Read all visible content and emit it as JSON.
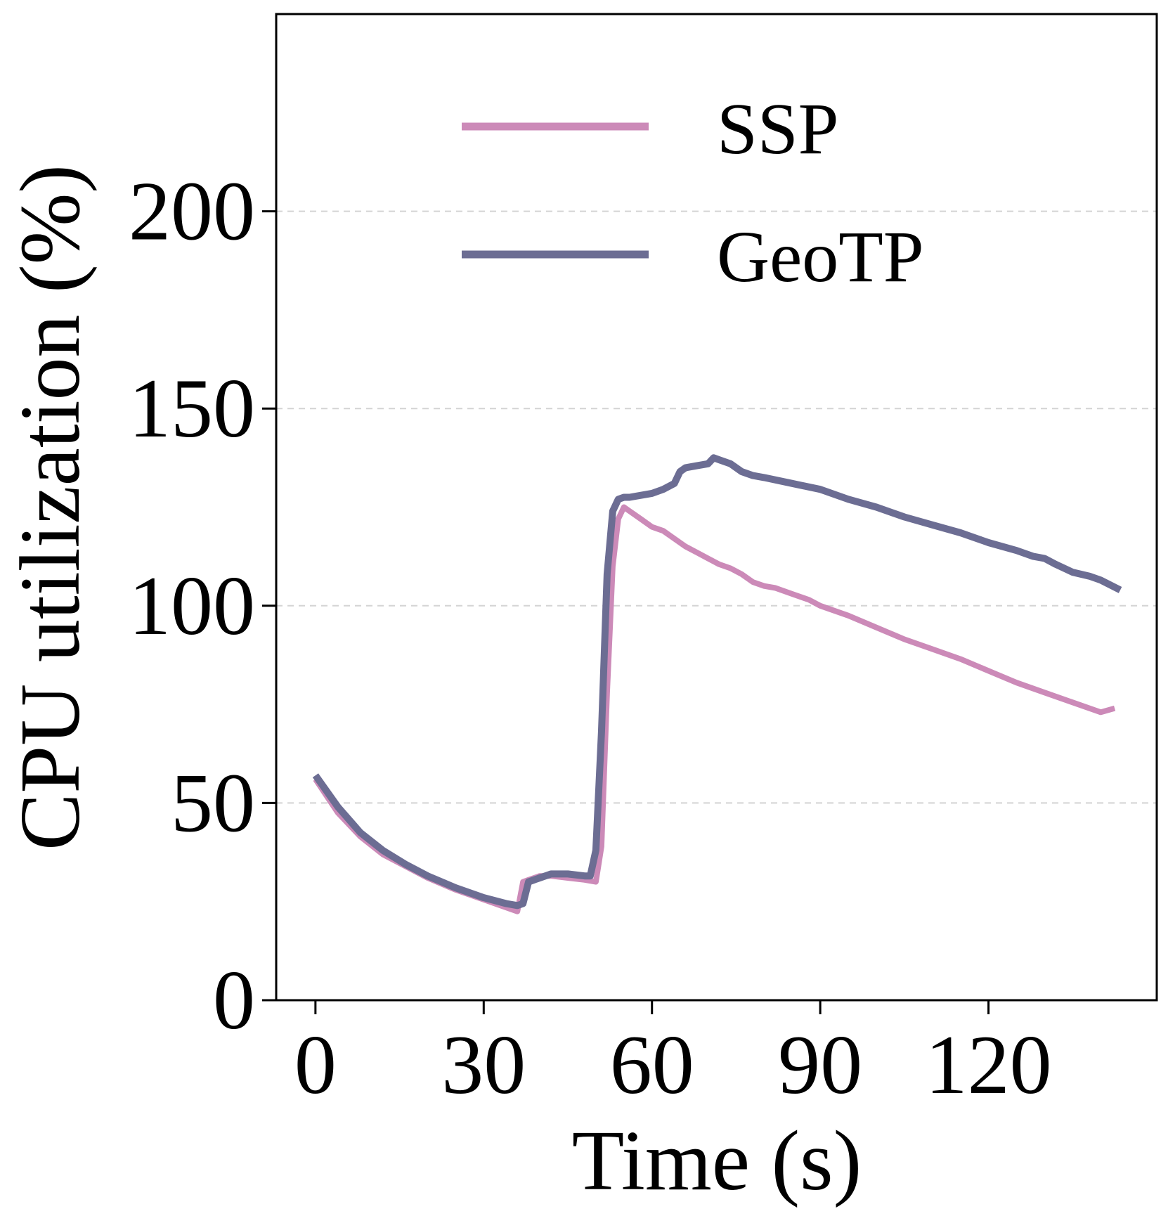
{
  "chart_data": {
    "type": "line",
    "title": "",
    "xlabel": "Time (s)",
    "ylabel": "CPU utilization (%)",
    "xlim": [
      -7,
      150
    ],
    "ylim": [
      0,
      250
    ],
    "xticks": [
      0,
      30,
      60,
      90,
      120
    ],
    "xtick_labels": [
      "0",
      "30",
      "60",
      "90",
      "120"
    ],
    "yticks": [
      0,
      50,
      100,
      150,
      200
    ],
    "ytick_labels": [
      "0",
      "50",
      "100",
      "150",
      "200"
    ],
    "grid": "horizontal dashed",
    "legend_position": "top-center",
    "series": [
      {
        "name": "SSP",
        "color": "#cc8ab8",
        "x": [
          0,
          4,
          8,
          12,
          16,
          20,
          25,
          30,
          34,
          36,
          37,
          38,
          40,
          42,
          45,
          48,
          50,
          51,
          52,
          53,
          54,
          55,
          56,
          58,
          60,
          62,
          64,
          66,
          68,
          70,
          72,
          74,
          76,
          78,
          80,
          82,
          85,
          88,
          90,
          95,
          100,
          105,
          110,
          115,
          120,
          125,
          130,
          135,
          140,
          142.5
        ],
        "y": [
          56,
          47.5,
          41.5,
          37,
          34,
          31,
          28,
          25.5,
          23.5,
          22.5,
          30,
          30.5,
          31.5,
          31.5,
          31,
          30.5,
          30,
          39,
          78,
          110,
          122,
          125,
          124,
          122,
          120,
          119,
          117,
          115,
          113.5,
          112,
          110.5,
          109.5,
          108,
          106,
          105,
          104.5,
          103,
          101.5,
          100,
          97.5,
          94.5,
          91.5,
          89,
          86.5,
          83.5,
          80.5,
          78,
          75.5,
          73,
          74
        ]
      },
      {
        "name": "GeoTP",
        "color": "#6c6d93",
        "x": [
          0,
          4,
          8,
          12,
          16,
          20,
          25,
          30,
          34,
          36,
          37,
          38,
          40,
          42,
          45,
          48,
          49,
          50,
          51,
          52,
          53,
          54,
          55,
          56,
          60,
          62,
          64,
          65,
          66,
          68,
          70,
          71,
          72,
          74,
          76,
          78,
          80,
          85,
          90,
          95,
          100,
          105,
          110,
          115,
          120,
          125,
          128,
          130,
          132,
          135,
          138,
          140,
          143.5
        ],
        "y": [
          57,
          49,
          42.5,
          38,
          34.5,
          31.5,
          28.5,
          26,
          24.5,
          24,
          24.5,
          30,
          31,
          32,
          32,
          31.5,
          31.5,
          38,
          68,
          108,
          124,
          127,
          127.5,
          127.5,
          128.5,
          129.5,
          131,
          134,
          135,
          135.5,
          136,
          137.5,
          137,
          136,
          134,
          133,
          132.5,
          131,
          129.5,
          127,
          125,
          122.5,
          120.5,
          118.5,
          116,
          114,
          112.5,
          112,
          110.5,
          108.5,
          107.5,
          106.5,
          104
        ]
      }
    ]
  }
}
